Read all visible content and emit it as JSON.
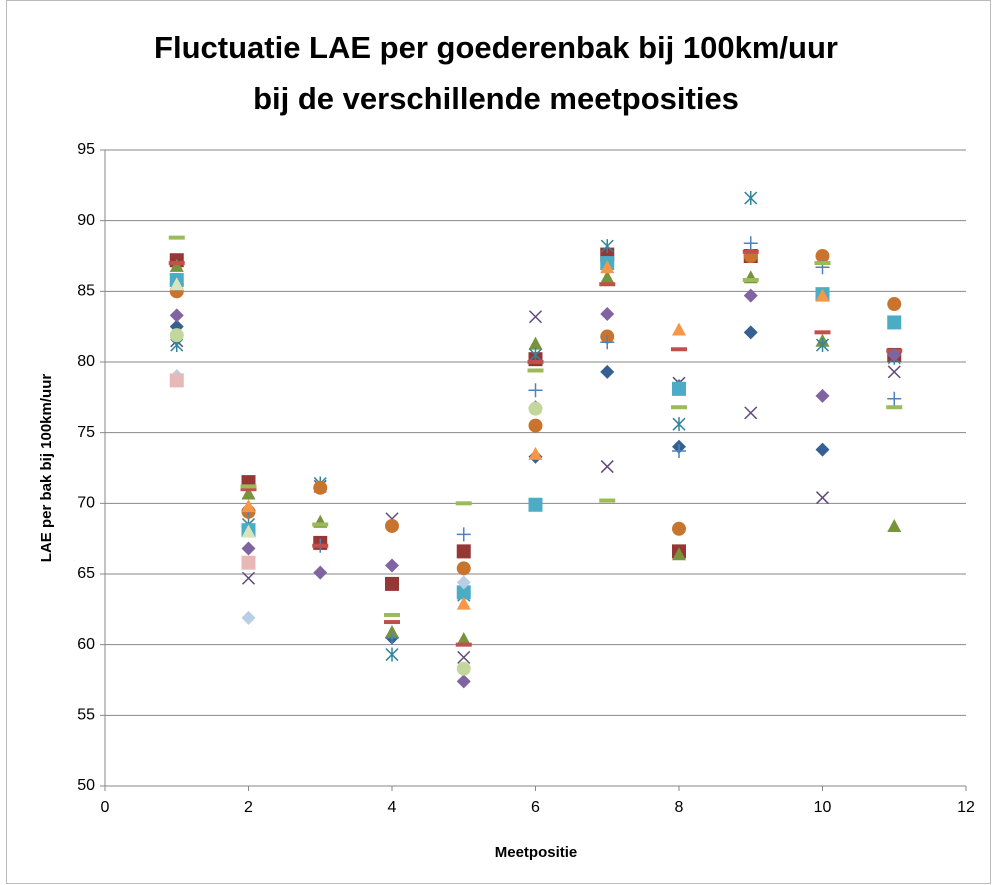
{
  "chart_data": {
    "type": "scatter",
    "title": [
      "Fluctuatie LAE per goederenbak bij 100km/uur",
      "bij de verschillende meetposities"
    ],
    "x_label": "Meetpositie",
    "y_label": "LAE per bak bij 100km/uur",
    "x": [
      1,
      2,
      3,
      4,
      5,
      6,
      7,
      8,
      9,
      10,
      11
    ],
    "xlim": [
      0,
      12
    ],
    "xticks": [
      0,
      2,
      4,
      6,
      8,
      10,
      12
    ],
    "ylim": [
      50,
      95
    ],
    "yticks": [
      50,
      55,
      60,
      65,
      70,
      75,
      80,
      85,
      90,
      95
    ],
    "grid": true,
    "series": [
      {
        "marker": "diamond",
        "color": "#376092",
        "values": [
          82.5,
          null,
          null,
          60.5,
          null,
          73.3,
          79.3,
          74.0,
          82.1,
          73.8,
          null
        ]
      },
      {
        "marker": "square",
        "color": "#953735",
        "values": [
          87.2,
          71.5,
          67.2,
          64.3,
          66.6,
          80.2,
          87.6,
          66.6,
          87.5,
          null,
          80.5
        ]
      },
      {
        "marker": "triangle",
        "color": "#77933C",
        "values": [
          86.8,
          70.7,
          68.7,
          60.9,
          60.4,
          81.3,
          86.0,
          66.4,
          86.0,
          81.5,
          68.4
        ]
      },
      {
        "marker": "x",
        "color": "#604A7B",
        "values": [
          81.5,
          64.7,
          71.2,
          68.9,
          59.1,
          83.2,
          72.6,
          78.5,
          76.4,
          70.4,
          79.3
        ]
      },
      {
        "marker": "star",
        "color": "#31859C",
        "values": [
          81.2,
          68.5,
          71.4,
          59.3,
          63.5,
          80.5,
          88.2,
          75.6,
          91.6,
          81.2,
          80.3
        ]
      },
      {
        "marker": "circle",
        "color": "#C9742E",
        "values": [
          85.0,
          69.4,
          71.1,
          68.4,
          65.4,
          75.5,
          81.8,
          68.2,
          87.5,
          87.5,
          84.1
        ]
      },
      {
        "marker": "plus",
        "color": "#4F81BD",
        "values": [
          85.5,
          69.5,
          67.0,
          60.5,
          67.8,
          78.0,
          81.4,
          73.7,
          88.4,
          86.7,
          77.4
        ]
      },
      {
        "marker": "dash",
        "color": "#C0504D",
        "values": [
          87.0,
          71.0,
          67.0,
          61.6,
          60.0,
          80.0,
          85.5,
          80.9,
          87.8,
          82.1,
          80.8
        ]
      },
      {
        "marker": "dash",
        "color": "#9BBB59",
        "values": [
          88.8,
          71.2,
          68.5,
          62.1,
          70.0,
          79.4,
          70.2,
          76.8,
          85.8,
          87.0,
          76.8
        ]
      },
      {
        "marker": "diamond",
        "color": "#8064A2",
        "values": [
          83.3,
          66.8,
          65.1,
          65.6,
          57.4,
          76.8,
          83.4,
          78.3,
          84.7,
          77.6,
          80.5
        ]
      },
      {
        "marker": "square",
        "color": "#4BACC6",
        "values": [
          85.8,
          68.1,
          null,
          null,
          63.7,
          69.9,
          87.0,
          78.1,
          null,
          84.8,
          82.8
        ]
      },
      {
        "marker": "triangle",
        "color": "#F79646",
        "values": [
          null,
          69.8,
          null,
          null,
          62.9,
          73.5,
          86.7,
          82.3,
          null,
          84.7,
          null
        ]
      },
      {
        "marker": "diamond",
        "color": "#B9CDE5",
        "values": [
          79.0,
          61.9,
          null,
          null,
          64.4,
          null,
          null,
          null,
          null,
          null,
          null
        ]
      },
      {
        "marker": "square",
        "color": "#E6B9B8",
        "values": [
          78.7,
          65.8,
          null,
          null,
          null,
          null,
          null,
          null,
          null,
          null,
          null
        ]
      },
      {
        "marker": "triangle",
        "color": "#D7E4BD",
        "values": [
          85.5,
          68.0,
          null,
          null,
          null,
          null,
          null,
          null,
          null,
          null,
          null
        ]
      },
      {
        "marker": "circle",
        "color": "#C3D69B",
        "values": [
          81.9,
          null,
          null,
          null,
          58.3,
          76.7,
          null,
          null,
          null,
          null,
          null
        ]
      }
    ]
  }
}
